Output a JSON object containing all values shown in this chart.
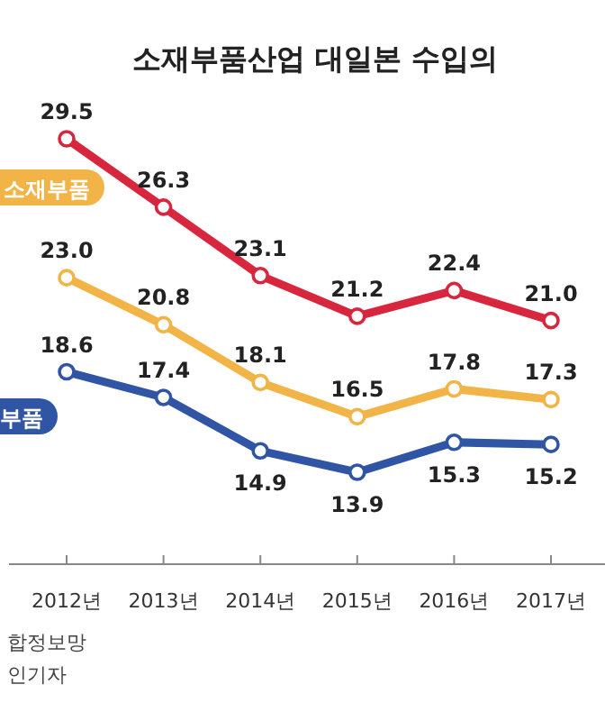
{
  "chart_data": {
    "type": "line",
    "title": "소재부품산업 대일본 수입의",
    "categories": [
      "2012년",
      "2013년",
      "2014년",
      "2015년",
      "2016년",
      "2017년"
    ],
    "series": [
      {
        "color": "#d7263d",
        "values": [
          29.5,
          26.3,
          23.1,
          21.2,
          22.4,
          21.0
        ],
        "value_labels": [
          "29.5",
          "26.3",
          "23.1",
          "21.2",
          "22.4",
          "21.0"
        ]
      },
      {
        "name": "소재부품",
        "color": "#f2b447",
        "values": [
          23.0,
          20.8,
          18.1,
          16.5,
          17.8,
          17.3
        ],
        "value_labels": [
          "23.0",
          "20.8",
          "18.1",
          "16.5",
          "17.8",
          "17.3"
        ]
      },
      {
        "name": "부품",
        "color": "#2f55a4",
        "values": [
          18.6,
          17.4,
          14.9,
          13.9,
          15.3,
          15.2
        ],
        "value_labels": [
          "18.6",
          "17.4",
          "14.9",
          "13.9",
          "15.3",
          "15.2"
        ]
      }
    ],
    "marker": "circle",
    "line_style": "solid",
    "legend": "left",
    "annotations": [
      "합정보망",
      "인기자"
    ]
  }
}
